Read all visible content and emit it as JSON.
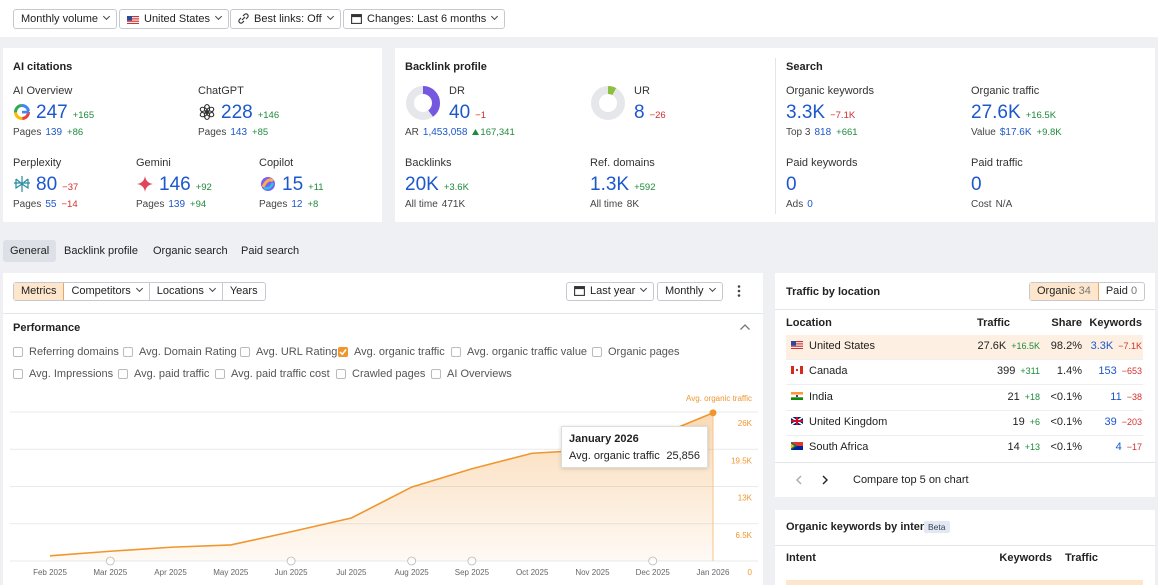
{
  "toolbar": {
    "buttons": [
      "Monthly volume",
      "United States",
      "Best links: Off",
      "Changes: Last 6 months"
    ]
  },
  "ai_citations": {
    "title": "AI citations",
    "items": [
      {
        "name": "AI Overview",
        "value": "247",
        "delta": "+165",
        "sub_label": "Pages",
        "sub_value": "139",
        "sub_delta": "+86"
      },
      {
        "name": "ChatGPT",
        "value": "228",
        "delta": "+146",
        "sub_label": "Pages",
        "sub_value": "143",
        "sub_delta": "+85"
      },
      {
        "name": "Perplexity",
        "value": "80",
        "delta": "−37",
        "sub_label": "Pages",
        "sub_value": "55",
        "sub_delta": "−14"
      },
      {
        "name": "Gemini",
        "value": "146",
        "delta": "+92",
        "sub_label": "Pages",
        "sub_value": "139",
        "sub_delta": "+94"
      },
      {
        "name": "Copilot",
        "value": "15",
        "delta": "+11",
        "sub_label": "Pages",
        "sub_value": "12",
        "sub_delta": "+8"
      }
    ]
  },
  "backlink_profile": {
    "title": "Backlink profile",
    "items": [
      {
        "name": "DR",
        "value": 40,
        "delta": "−1",
        "sub_label": "AR",
        "sub_value": "1,453,058",
        "sub_delta": "167,341"
      },
      {
        "name": "UR",
        "value": 8,
        "delta": "−26"
      },
      {
        "name": "Backlinks",
        "value": "20K",
        "delta": "+3.6K",
        "sub_label": "All time",
        "sub_value": "471K"
      },
      {
        "name": "Ref. domains",
        "value": "1.3K",
        "delta": "+592",
        "sub_label": "All time",
        "sub_value": "8K"
      }
    ]
  },
  "search": {
    "title": "Search",
    "items": [
      {
        "name": "Organic keywords",
        "value": "3.3K",
        "delta": "−7.1K",
        "sub_label": "Top 3",
        "sub_value": "818",
        "sub_delta": "+661"
      },
      {
        "name": "Organic traffic",
        "value": "27.6K",
        "delta": "+16.5K",
        "sub_label": "Value",
        "sub_value": "$17.6K",
        "sub_delta": "+9.8K"
      },
      {
        "name": "Paid keywords",
        "value": "0",
        "sub_label": "Ads",
        "sub_value": "0"
      },
      {
        "name": "Paid traffic",
        "value": "0",
        "sub_label": "Cost",
        "sub_value": "N/A"
      }
    ]
  },
  "tabs": [
    "General",
    "Backlink profile",
    "Organic search",
    "Paid search"
  ],
  "performance": {
    "controls": [
      "Metrics",
      "Competitors",
      "Locations",
      "Years"
    ],
    "period": "Last year",
    "interval": "Monthly",
    "title": "Performance",
    "metrics": [
      {
        "label": "Referring domains",
        "checked": false
      },
      {
        "label": "Avg. Domain Rating",
        "checked": false
      },
      {
        "label": "Avg. URL Rating",
        "checked": false
      },
      {
        "label": "Avg. organic traffic",
        "checked": true
      },
      {
        "label": "Avg. organic traffic value",
        "checked": false
      },
      {
        "label": "Organic pages",
        "checked": false
      },
      {
        "label": "Avg. Impressions",
        "checked": false
      },
      {
        "label": "Avg. paid traffic",
        "checked": false
      },
      {
        "label": "Avg. paid traffic cost",
        "checked": false
      },
      {
        "label": "Crawled pages",
        "checked": false
      },
      {
        "label": "AI Overviews",
        "checked": false
      }
    ],
    "chart": {
      "type": "area",
      "series_label": "Avg. organic traffic",
      "color": "#f0962e",
      "x": [
        "Feb 2025",
        "Mar 2025",
        "Apr 2025",
        "May 2025",
        "Jun 2025",
        "Jul 2025",
        "Aug 2025",
        "Sep 2025",
        "Oct 2025",
        "Nov 2025",
        "Dec 2025",
        "Jan 2026"
      ],
      "values": [
        900,
        1700,
        2400,
        2800,
        5100,
        7500,
        12900,
        16100,
        18800,
        19400,
        21500,
        25856
      ],
      "value_labels": [
        null,
        null,
        null,
        null,
        null,
        null,
        null,
        null,
        null,
        null,
        null,
        "25,856"
      ],
      "ylim": [
        0,
        26000
      ],
      "yticks": [
        0,
        {
          "value": 6500,
          "label": "6.5K"
        },
        {
          "value": 13000,
          "label": "13K"
        },
        {
          "value": 19500,
          "label": "19.5K"
        },
        {
          "value": 26000,
          "label": "26K"
        }
      ],
      "grid": true,
      "tooltip_title": "January 2026"
    }
  },
  "traffic_by_location": {
    "title": "Traffic by location",
    "toggle": [
      {
        "label": "Organic",
        "count": "34"
      },
      {
        "label": "Paid",
        "count": "0"
      }
    ],
    "columns": [
      "Location",
      "Traffic",
      "Share",
      "Keywords"
    ],
    "rows": [
      {
        "name": "United States",
        "traffic": "27.6K",
        "traffic_delta": "+16.5K",
        "share": "98.2%",
        "keywords": "3.3K",
        "keywords_delta": "−7.1K"
      },
      {
        "name": "Canada",
        "traffic": "399",
        "traffic_delta": "+311",
        "share": "1.4%",
        "keywords": "153",
        "keywords_delta": "−653"
      },
      {
        "name": "India",
        "traffic": "21",
        "traffic_delta": "+18",
        "share": "<0.1%",
        "keywords": "11",
        "keywords_delta": "−38"
      },
      {
        "name": "United Kingdom",
        "traffic": "19",
        "traffic_delta": "+6",
        "share": "<0.1%",
        "keywords": "39",
        "keywords_delta": "−203"
      },
      {
        "name": "South Africa",
        "traffic": "14",
        "traffic_delta": "+13",
        "share": "<0.1%",
        "keywords": "4",
        "keywords_delta": "−17"
      }
    ],
    "footer": "Compare top 5 on chart"
  },
  "keywords_by_intent": {
    "title": "Organic keywords by intent",
    "badge": "Beta",
    "columns": [
      "Intent",
      "Keywords",
      "Traffic"
    ]
  }
}
